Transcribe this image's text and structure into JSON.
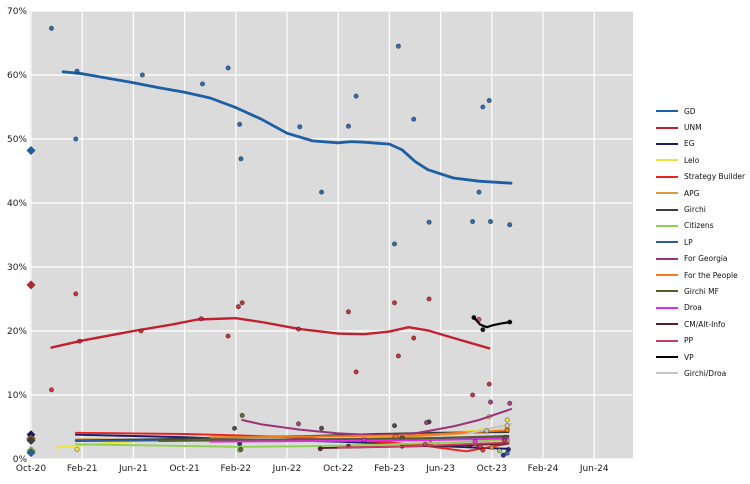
{
  "chart_data": {
    "type": "scatter",
    "title": "",
    "description": "Party polling trends with smoothed trend lines, individual poll result dots, and Oct-2020 election results shown as diamonds",
    "plot": {
      "bg": "#dbdbdb",
      "grid": "#ffffff"
    },
    "x_axis": {
      "unit": "months-since-Oct-2020",
      "tick_months": [
        0,
        4,
        8,
        12,
        16,
        20,
        24,
        28,
        32,
        36,
        40,
        44
      ],
      "tick_labels": [
        "Oct-20",
        "Feb-21",
        "Jun-21",
        "Oct-21",
        "Feb-22",
        "Jun-22",
        "Oct-22",
        "Feb-23",
        "Jun-23",
        "Oct-23",
        "Feb-24",
        "Jun-24"
      ]
    },
    "y_axis": {
      "tick_values": [
        0,
        10,
        20,
        30,
        40,
        50,
        60,
        70
      ],
      "tick_labels": [
        "0%",
        "10%",
        "20%",
        "30%",
        "40%",
        "50%",
        "60%",
        "70%"
      ],
      "min": 0,
      "max": 70
    },
    "legend_position": "right",
    "series": [
      {
        "name": "GD",
        "color": "#1d5fa5",
        "lw": 2.8,
        "election_result": 48.2,
        "line": [
          [
            2.5,
            60.5
          ],
          [
            4,
            60.2
          ],
          [
            6,
            59.5
          ],
          [
            8,
            58.8
          ],
          [
            10,
            58.0
          ],
          [
            12,
            57.3
          ],
          [
            14,
            56.4
          ],
          [
            16,
            54.9
          ],
          [
            18,
            53.1
          ],
          [
            20,
            50.9
          ],
          [
            22,
            49.7
          ],
          [
            24,
            49.4
          ],
          [
            25,
            49.6
          ],
          [
            26,
            49.5
          ],
          [
            28,
            49.2
          ],
          [
            29,
            48.3
          ],
          [
            30,
            46.5
          ],
          [
            31,
            45.2
          ],
          [
            33,
            43.9
          ],
          [
            35,
            43.4
          ],
          [
            37.5,
            43.1
          ]
        ],
        "points": [
          [
            1.6,
            67.3
          ],
          [
            3.5,
            50.0
          ],
          [
            3.6,
            60.6
          ],
          [
            8.7,
            60.0
          ],
          [
            13.4,
            58.6
          ],
          [
            15.4,
            61.1
          ],
          [
            16.3,
            52.3
          ],
          [
            16.4,
            46.9
          ],
          [
            21.0,
            51.9
          ],
          [
            22.7,
            41.7
          ],
          [
            24.8,
            52.0
          ],
          [
            25.4,
            56.7
          ],
          [
            28.4,
            33.6
          ],
          [
            28.7,
            64.5
          ],
          [
            29.9,
            53.1
          ],
          [
            31.1,
            37.0
          ],
          [
            34.5,
            37.1
          ],
          [
            35.0,
            41.7
          ],
          [
            35.3,
            55.0
          ],
          [
            35.8,
            56.0
          ],
          [
            35.9,
            37.1
          ],
          [
            37.4,
            36.6
          ]
        ]
      },
      {
        "name": "UNM",
        "color": "#c0212e",
        "lw": 2.4,
        "election_result": 27.2,
        "line": [
          [
            1.6,
            17.4
          ],
          [
            4,
            18.5
          ],
          [
            8,
            20.0
          ],
          [
            11,
            21.0
          ],
          [
            13,
            21.8
          ],
          [
            16,
            22.0
          ],
          [
            18,
            21.4
          ],
          [
            21,
            20.3
          ],
          [
            24,
            19.6
          ],
          [
            26,
            19.5
          ],
          [
            28,
            19.9
          ],
          [
            29.5,
            20.6
          ],
          [
            31,
            20.1
          ],
          [
            33,
            18.9
          ],
          [
            35.8,
            17.3
          ]
        ],
        "points": [
          [
            1.6,
            10.8
          ],
          [
            3.5,
            25.8
          ],
          [
            3.8,
            18.4
          ],
          [
            8.6,
            20.0
          ],
          [
            13.3,
            21.9
          ],
          [
            15.4,
            19.2
          ],
          [
            16.2,
            23.8
          ],
          [
            16.5,
            24.4
          ],
          [
            20.9,
            20.3
          ],
          [
            24.8,
            23.0
          ],
          [
            25.4,
            13.6
          ],
          [
            28.4,
            24.4
          ],
          [
            28.7,
            16.1
          ],
          [
            29.9,
            18.9
          ],
          [
            31.1,
            25.0
          ],
          [
            34.5,
            10.0
          ],
          [
            35.8,
            11.7
          ]
        ]
      },
      {
        "name": "EG",
        "color": "#1b1b6e",
        "lw": 1.9,
        "election_result": 3.8,
        "line": [
          [
            3.5,
            3.8
          ],
          [
            8,
            3.6
          ],
          [
            12,
            3.4
          ],
          [
            16,
            3.1
          ],
          [
            20,
            2.9
          ],
          [
            24,
            2.7
          ],
          [
            28,
            2.4
          ],
          [
            32,
            2.0
          ],
          [
            37.2,
            1.6
          ]
        ],
        "points": [
          [
            16.3,
            2.4
          ],
          [
            29.0,
            2.0
          ],
          [
            36.9,
            0.6
          ],
          [
            37.3,
            1.5
          ]
        ]
      },
      {
        "name": "Lelo",
        "color": "#efe23b",
        "lw": 1.9,
        "election_result": 3.2,
        "line": [
          [
            2,
            1.8
          ],
          [
            6,
            2.5
          ],
          [
            10,
            3.0
          ],
          [
            14,
            3.3
          ],
          [
            18,
            3.4
          ],
          [
            22,
            3.3
          ],
          [
            26,
            3.4
          ],
          [
            30,
            3.7
          ],
          [
            34,
            4.3
          ],
          [
            37.5,
            5.2
          ]
        ],
        "points": [
          [
            3.6,
            1.5
          ],
          [
            35.8,
            6.6
          ],
          [
            37.2,
            6.1
          ]
        ]
      },
      {
        "name": "Strategy Builder",
        "color": "#e8231f",
        "lw": 1.9,
        "election_result": 3.2,
        "line": [
          [
            3.5,
            4.1
          ],
          [
            8,
            4.0
          ],
          [
            12,
            3.9
          ],
          [
            16,
            3.7
          ],
          [
            20,
            3.4
          ],
          [
            24,
            3.0
          ],
          [
            28,
            2.6
          ],
          [
            31,
            2.0
          ],
          [
            34,
            1.2
          ],
          [
            37.3,
            2.4
          ]
        ],
        "points": [
          [
            31.2,
            2.4
          ],
          [
            35.0,
            1.9
          ],
          [
            35.3,
            1.4
          ],
          [
            37.0,
            2.6
          ]
        ]
      },
      {
        "name": "APG",
        "color": "#dc9a3e",
        "lw": 1.9,
        "election_result": 3.1,
        "line": [
          [
            3.5,
            3.1
          ],
          [
            10,
            3.0
          ],
          [
            16,
            3.0
          ],
          [
            22,
            3.1
          ],
          [
            28,
            3.3
          ],
          [
            33,
            3.9
          ],
          [
            37.3,
            4.5
          ]
        ],
        "points": [
          [
            28.4,
            3.3
          ],
          [
            36.0,
            1.8
          ],
          [
            37.2,
            4.6
          ]
        ]
      },
      {
        "name": "Girchi",
        "color": "#3d3d3d",
        "lw": 1.9,
        "election_result": 2.9,
        "line": [
          [
            3.5,
            2.9
          ],
          [
            10,
            3.1
          ],
          [
            16,
            3.4
          ],
          [
            22,
            3.6
          ],
          [
            27,
            3.9
          ],
          [
            31,
            4.1
          ],
          [
            37.3,
            4.2
          ]
        ],
        "points": [
          [
            15.9,
            4.8
          ],
          [
            22.7,
            4.8
          ],
          [
            28.4,
            5.2
          ],
          [
            31.1,
            5.8
          ]
        ]
      },
      {
        "name": "Citizens",
        "color": "#8fd052",
        "lw": 1.9,
        "election_result": 1.3,
        "line": [
          [
            3.5,
            2.3
          ],
          [
            10,
            2.1
          ],
          [
            16,
            1.9
          ],
          [
            22,
            2.0
          ],
          [
            28,
            2.3
          ],
          [
            33,
            2.6
          ],
          [
            37.3,
            3.0
          ]
        ],
        "points": [
          [
            16.3,
            1.4
          ],
          [
            36.6,
            1.3
          ],
          [
            37.2,
            2.9
          ]
        ]
      },
      {
        "name": "LP",
        "color": "#2d5b9b",
        "lw": 1.9,
        "election_result": 1.0,
        "line": [
          [
            3.5,
            2.8
          ],
          [
            10,
            2.9
          ],
          [
            16,
            3.0
          ],
          [
            24,
            3.1
          ],
          [
            30,
            3.2
          ],
          [
            37.3,
            3.4
          ]
        ],
        "points": [
          [
            29.0,
            3.4
          ],
          [
            37.2,
            0.9
          ]
        ]
      },
      {
        "name": "For Georgia",
        "color": "#9a3377",
        "lw": 2.0,
        "election_result": null,
        "line": [
          [
            16.5,
            6.1
          ],
          [
            18,
            5.4
          ],
          [
            21,
            4.6
          ],
          [
            24,
            4.0
          ],
          [
            27,
            3.7
          ],
          [
            30,
            4.0
          ],
          [
            33,
            5.1
          ],
          [
            35,
            6.1
          ],
          [
            37.5,
            7.8
          ]
        ],
        "points": [
          [
            20.9,
            5.5
          ],
          [
            30.9,
            5.7
          ],
          [
            35.9,
            8.9
          ],
          [
            37.4,
            8.7
          ]
        ]
      },
      {
        "name": "For the People",
        "color": "#f57920",
        "lw": 1.9,
        "election_result": null,
        "line": [
          [
            14,
            3.4
          ],
          [
            22,
            3.5
          ],
          [
            30,
            3.7
          ],
          [
            37.3,
            4.5
          ]
        ],
        "points": [
          [
            28.5,
            3.5
          ],
          [
            37.2,
            4.5
          ]
        ]
      },
      {
        "name": "Girchi MF",
        "color": "#535e2a",
        "lw": 1.9,
        "election_result": null,
        "line": [
          [
            10,
            2.8
          ],
          [
            20,
            3.0
          ],
          [
            30,
            3.2
          ],
          [
            37.3,
            3.6
          ]
        ],
        "points": [
          [
            16.4,
            1.5
          ],
          [
            16.5,
            6.8
          ],
          [
            29.0,
            3.3
          ],
          [
            37.1,
            3.4
          ]
        ]
      },
      {
        "name": "Droa",
        "color": "#e32ce3",
        "lw": 1.9,
        "election_result": null,
        "line": [
          [
            14,
            2.7
          ],
          [
            22,
            2.8
          ],
          [
            30,
            2.9
          ],
          [
            37.3,
            3.2
          ]
        ],
        "points": [
          [
            26.0,
            3.0
          ],
          [
            34.7,
            2.7
          ],
          [
            37.0,
            3.1
          ]
        ]
      },
      {
        "name": "CM/Alt-Info",
        "color": "#55202b",
        "lw": 1.9,
        "election_result": null,
        "line": [
          [
            22.5,
            1.7
          ],
          [
            28,
            1.9
          ],
          [
            33,
            2.1
          ],
          [
            37.3,
            2.4
          ]
        ],
        "points": [
          [
            22.6,
            1.6
          ],
          [
            24.8,
            2.0
          ],
          [
            34.3,
            2.1
          ]
        ]
      },
      {
        "name": "PP",
        "color": "#cb3c63",
        "lw": 1.9,
        "election_result": null,
        "line": [
          [
            24,
            1.8
          ],
          [
            30,
            2.0
          ],
          [
            37.3,
            2.6
          ]
        ],
        "points": [
          [
            30.8,
            2.3
          ],
          [
            35.0,
            21.8
          ],
          [
            35.1,
            2.0
          ],
          [
            37.0,
            2.9
          ]
        ]
      },
      {
        "name": "VP",
        "color": "#000000",
        "lw": 2.2,
        "election_result": null,
        "line": [
          [
            34.6,
            22.1
          ],
          [
            35.1,
            21.0
          ],
          [
            35.6,
            20.6
          ],
          [
            36.1,
            20.9
          ],
          [
            36.8,
            21.2
          ],
          [
            37.5,
            21.4
          ]
        ],
        "points": [
          [
            34.6,
            22.1
          ],
          [
            35.3,
            20.2
          ],
          [
            37.4,
            21.4
          ]
        ]
      },
      {
        "name": "Girchi/Droa",
        "color": "#c6c6c6",
        "lw": 1.9,
        "election_result": null,
        "line": [
          [
            34.0,
            3.9
          ],
          [
            37.5,
            5.5
          ]
        ],
        "points": [
          [
            35.6,
            4.4
          ],
          [
            37.2,
            5.2
          ]
        ]
      }
    ]
  }
}
